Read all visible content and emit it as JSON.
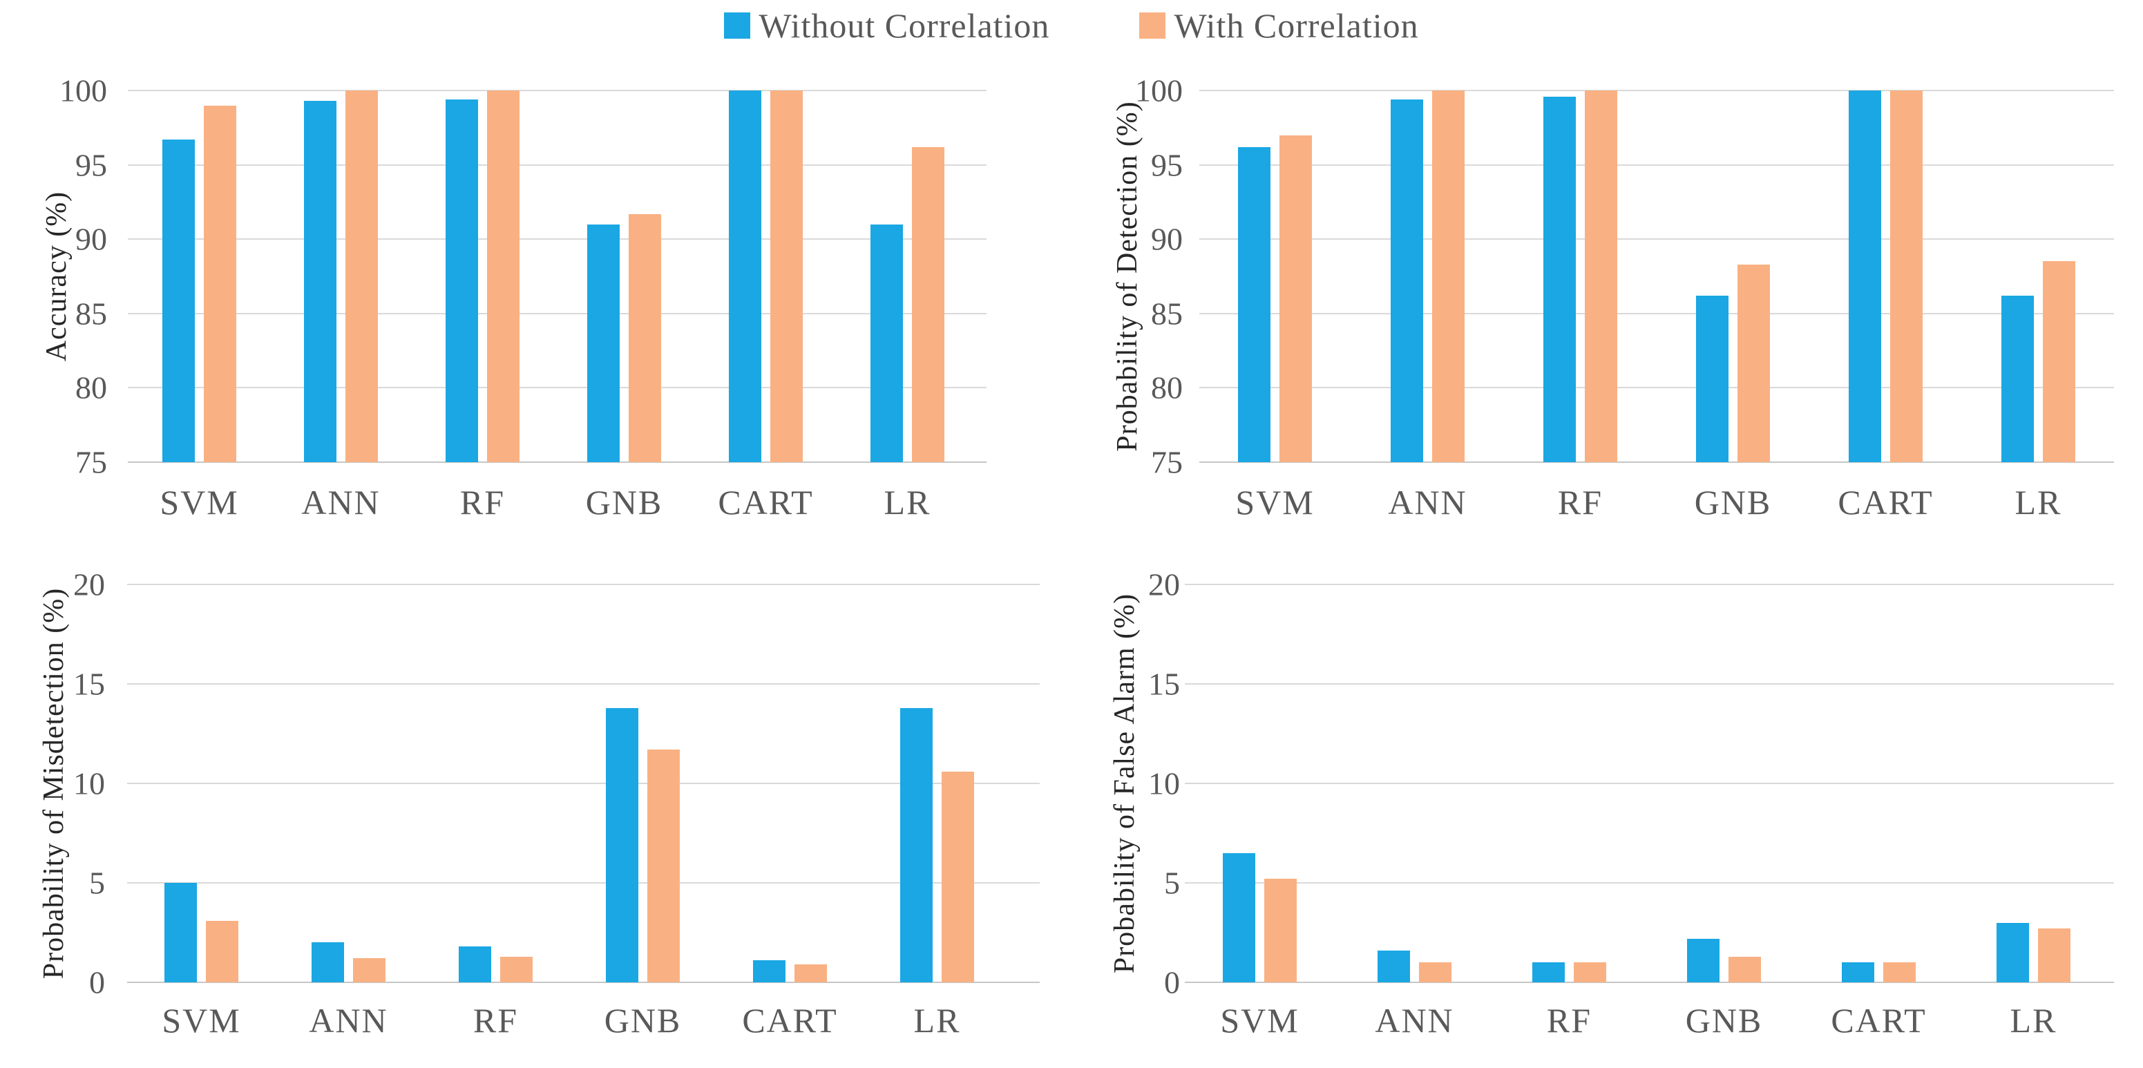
{
  "legend": {
    "position": "top",
    "items": [
      {
        "label": "Without Correlation",
        "color": "#1aa7e3",
        "swatch": "blue-square-icon"
      },
      {
        "label": "With Correlation",
        "color": "#f9b183",
        "swatch": "orange-square-icon"
      }
    ]
  },
  "colors": {
    "series_without_correlation": "#1aa7e3",
    "series_with_correlation": "#f9b183",
    "gridline": "#d9d9d9",
    "axis_text": "#595959",
    "axis_title_text": "#262626"
  },
  "chart_data": [
    {
      "type": "bar",
      "title": "",
      "xlabel": "",
      "ylabel": "Accuracy (%)",
      "categories": [
        "SVM",
        "ANN",
        "RF",
        "GNB",
        "CART",
        "LR"
      ],
      "series": [
        {
          "name": "Without Correlation",
          "color": "#1aa7e3",
          "values": [
            96.7,
            99.3,
            99.4,
            91.0,
            100,
            91.0
          ]
        },
        {
          "name": "With Correlation",
          "color": "#f9b183",
          "values": [
            99.0,
            100,
            100,
            91.7,
            100,
            96.2
          ]
        }
      ],
      "ylim": [
        75,
        100
      ],
      "yticks": [
        75,
        80,
        85,
        90,
        95,
        100
      ],
      "grid": "horizontal",
      "legend_position": "shared-top"
    },
    {
      "type": "bar",
      "title": "",
      "xlabel": "",
      "ylabel": "Probability of Detection (%)",
      "categories": [
        "SVM",
        "ANN",
        "RF",
        "GNB",
        "CART",
        "LR"
      ],
      "series": [
        {
          "name": "Without Correlation",
          "color": "#1aa7e3",
          "values": [
            96.2,
            99.4,
            99.6,
            86.2,
            100,
            86.2
          ]
        },
        {
          "name": "With Correlation",
          "color": "#f9b183",
          "values": [
            97.0,
            100,
            100,
            88.3,
            100,
            88.5
          ]
        }
      ],
      "ylim": [
        75,
        100
      ],
      "yticks": [
        75,
        80,
        85,
        90,
        95,
        100
      ],
      "grid": "horizontal",
      "legend_position": "shared-top"
    },
    {
      "type": "bar",
      "title": "",
      "xlabel": "",
      "ylabel": "Probability of Misdetection (%)",
      "categories": [
        "SVM",
        "ANN",
        "RF",
        "GNB",
        "CART",
        "LR"
      ],
      "series": [
        {
          "name": "Without Correlation",
          "color": "#1aa7e3",
          "values": [
            5.0,
            2.0,
            1.8,
            13.8,
            1.1,
            13.8
          ]
        },
        {
          "name": "With Correlation",
          "color": "#f9b183",
          "values": [
            3.1,
            1.2,
            1.3,
            11.7,
            0.9,
            10.6
          ]
        }
      ],
      "ylim": [
        0,
        20
      ],
      "yticks": [
        0,
        5,
        10,
        15,
        20
      ],
      "grid": "horizontal",
      "legend_position": "shared-top"
    },
    {
      "type": "bar",
      "title": "",
      "xlabel": "",
      "ylabel": "Probability of False Alarm (%)",
      "categories": [
        "SVM",
        "ANN",
        "RF",
        "GNB",
        "CART",
        "LR"
      ],
      "series": [
        {
          "name": "Without Correlation",
          "color": "#1aa7e3",
          "values": [
            6.5,
            1.6,
            1.0,
            2.2,
            1.0,
            3.0
          ]
        },
        {
          "name": "With Correlation",
          "color": "#f9b183",
          "values": [
            5.2,
            1.0,
            1.0,
            1.3,
            1.0,
            2.7
          ]
        }
      ],
      "ylim": [
        0,
        20
      ],
      "yticks": [
        0,
        5,
        10,
        15,
        20
      ],
      "grid": "horizontal",
      "legend_position": "shared-top"
    }
  ]
}
